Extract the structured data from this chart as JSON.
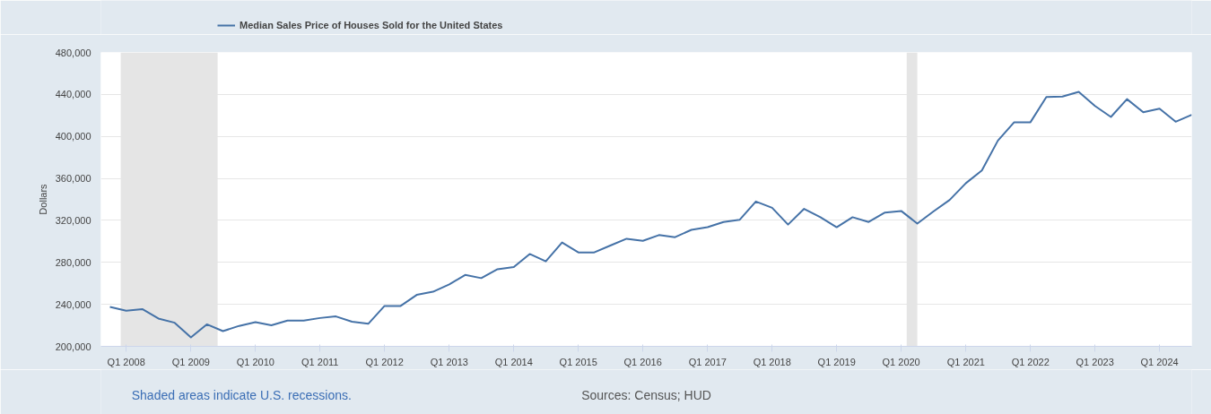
{
  "chart_data": {
    "type": "line",
    "ylabel": "Dollars",
    "x": [
      "2007-10-01",
      "2008-01-01",
      "2008-04-01",
      "2008-07-01",
      "2008-10-01",
      "2009-01-01",
      "2009-04-01",
      "2009-07-01",
      "2009-10-01",
      "2010-01-01",
      "2010-04-01",
      "2010-07-01",
      "2010-10-01",
      "2011-01-01",
      "2011-04-01",
      "2011-07-01",
      "2011-10-01",
      "2012-01-01",
      "2012-04-01",
      "2012-07-01",
      "2012-10-01",
      "2013-01-01",
      "2013-04-01",
      "2013-07-01",
      "2013-10-01",
      "2014-01-01",
      "2014-04-01",
      "2014-07-01",
      "2014-10-01",
      "2015-01-01",
      "2015-04-01",
      "2015-07-01",
      "2015-10-01",
      "2016-01-01",
      "2016-04-01",
      "2016-07-01",
      "2016-10-01",
      "2017-01-01",
      "2017-04-01",
      "2017-07-01",
      "2017-10-01",
      "2018-01-01",
      "2018-04-01",
      "2018-07-01",
      "2018-10-01",
      "2019-01-01",
      "2019-04-01",
      "2019-07-01",
      "2019-10-01",
      "2020-01-01",
      "2020-04-01",
      "2020-07-01",
      "2020-10-01",
      "2021-01-01",
      "2021-04-01",
      "2021-07-01",
      "2021-10-01",
      "2022-01-01",
      "2022-04-01",
      "2022-07-01",
      "2022-10-01",
      "2023-01-01",
      "2023-04-01",
      "2023-07-01",
      "2023-10-01",
      "2024-01-01",
      "2024-04-01",
      "2024-07-01"
    ],
    "series": [
      {
        "name": "Median Sales Price of Houses Sold for the United States",
        "color": "#4572a7",
        "values": [
          237500,
          234000,
          235500,
          226500,
          222500,
          208500,
          221000,
          214500,
          219500,
          223000,
          220000,
          224500,
          224500,
          227000,
          228500,
          223500,
          221500,
          238500,
          238500,
          249000,
          252000,
          259000,
          268000,
          265000,
          273500,
          275500,
          288000,
          281000,
          299000,
          289500,
          289500,
          296000,
          302500,
          300500,
          306000,
          304000,
          311000,
          313500,
          318500,
          320500,
          338000,
          332000,
          316000,
          331000,
          323000,
          313500,
          323000,
          318500,
          327500,
          329000,
          317000,
          328500,
          339500,
          355500,
          367500,
          396000,
          413500,
          413500,
          437500,
          438000,
          442500,
          429000,
          418500,
          435500,
          423000,
          426500,
          414000,
          420500
        ]
      }
    ],
    "xlim": [
      "2007-08-11",
      "2024-07-01"
    ],
    "xticks": [
      {
        "value": "2008-01-01",
        "label": "Q1 2008"
      },
      {
        "value": "2009-01-01",
        "label": "Q1 2009"
      },
      {
        "value": "2010-01-01",
        "label": "Q1 2010"
      },
      {
        "value": "2011-01-01",
        "label": "Q1 2011"
      },
      {
        "value": "2012-01-01",
        "label": "Q1 2012"
      },
      {
        "value": "2013-01-01",
        "label": "Q1 2013"
      },
      {
        "value": "2014-01-01",
        "label": "Q1 2014"
      },
      {
        "value": "2015-01-01",
        "label": "Q1 2015"
      },
      {
        "value": "2016-01-01",
        "label": "Q1 2016"
      },
      {
        "value": "2017-01-01",
        "label": "Q1 2017"
      },
      {
        "value": "2018-01-01",
        "label": "Q1 2018"
      },
      {
        "value": "2019-01-01",
        "label": "Q1 2019"
      },
      {
        "value": "2020-01-01",
        "label": "Q1 2020"
      },
      {
        "value": "2021-01-01",
        "label": "Q1 2021"
      },
      {
        "value": "2022-01-01",
        "label": "Q1 2022"
      },
      {
        "value": "2023-01-01",
        "label": "Q1 2023"
      },
      {
        "value": "2024-01-01",
        "label": "Q1 2024"
      }
    ],
    "ylim": [
      200000,
      480000
    ],
    "yticks": [
      {
        "value": 200000,
        "label": "200,000"
      },
      {
        "value": 240000,
        "label": "240,000"
      },
      {
        "value": 280000,
        "label": "280,000"
      },
      {
        "value": 320000,
        "label": "320,000"
      },
      {
        "value": 360000,
        "label": "360,000"
      },
      {
        "value": 400000,
        "label": "400,000"
      },
      {
        "value": 440000,
        "label": "440,000"
      },
      {
        "value": 480000,
        "label": "480,000"
      }
    ],
    "bands": [
      {
        "axis": "x",
        "from": "2007-12-01",
        "to": "2009-06-01",
        "color": "#e5e5e5"
      },
      {
        "axis": "x",
        "from": "2020-02-01",
        "to": "2020-04-01",
        "color": "#e5e5e5"
      }
    ],
    "grid": "y",
    "legend": "top left",
    "line_style": "solid",
    "marker": "none",
    "annotations": [
      "Shaded areas indicate U.S. recessions.",
      "Sources: Census; HUD"
    ]
  }
}
